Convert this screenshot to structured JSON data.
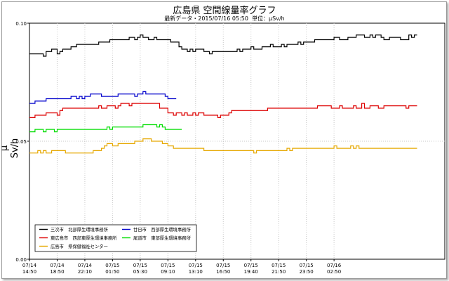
{
  "chart_data": {
    "type": "line",
    "title": "広島県 空間線量率グラフ",
    "subtitle_date_label": "最新データ・2015/07/16 05:50",
    "subtitle_unit_label": "単位：μSv/h",
    "ylabel": "μ Sv/h",
    "ylim": [
      0,
      0.1
    ],
    "yticks": [
      "0.00",
      "0.05",
      "0.10"
    ],
    "xlim": [
      0,
      150
    ],
    "grid": true,
    "legend_position": "bottom-left",
    "xtick_labels": [
      {
        "x": 0,
        "date": "07/14",
        "time": "14:50"
      },
      {
        "x": 10,
        "date": "07/14",
        "time": "18:50"
      },
      {
        "x": 20,
        "date": "07/14",
        "time": "22:10"
      },
      {
        "x": 30,
        "date": "07/15",
        "time": "01:50"
      },
      {
        "x": 40,
        "date": "07/15",
        "time": "05:30"
      },
      {
        "x": 50,
        "date": "07/15",
        "time": "09:10"
      },
      {
        "x": 60,
        "date": "07/15",
        "time": "13:10"
      },
      {
        "x": 70,
        "date": "07/15",
        "time": "16:50"
      },
      {
        "x": 80,
        "date": "07/15",
        "time": "19:40"
      },
      {
        "x": 90,
        "date": "07/15",
        "time": "21:50"
      },
      {
        "x": 100,
        "date": "07/15",
        "time": "23:50"
      },
      {
        "x": 110,
        "date": "07/16",
        "time": "02:50"
      }
    ],
    "series": [
      {
        "name": "三次市　北部厚生環境事務所",
        "color": "#000000",
        "values": [
          0.087,
          0.087,
          0.087,
          0.087,
          0.087,
          0.086,
          0.088,
          0.088,
          0.089,
          0.089,
          0.087,
          0.088,
          0.089,
          0.089,
          0.089,
          0.09,
          0.09,
          0.091,
          0.091,
          0.091,
          0.091,
          0.091,
          0.091,
          0.091,
          0.091,
          0.092,
          0.092,
          0.092,
          0.092,
          0.093,
          0.093,
          0.093,
          0.093,
          0.093,
          0.093,
          0.093,
          0.094,
          0.094,
          0.093,
          0.094,
          0.095,
          0.094,
          0.094,
          0.093,
          0.093,
          0.094,
          0.093,
          0.093,
          0.093,
          0.093,
          0.093,
          0.092,
          0.092,
          0.092,
          0.09,
          0.089,
          0.089,
          0.088,
          0.089,
          0.088,
          0.089,
          0.089,
          0.089,
          0.088,
          0.088,
          0.087,
          0.088,
          0.088,
          0.088,
          0.088,
          0.088,
          0.088,
          0.088,
          0.088,
          0.088,
          0.089,
          0.088,
          0.089,
          0.089,
          0.089,
          0.09,
          0.089,
          0.089,
          0.089,
          0.09,
          0.09,
          0.09,
          0.091,
          0.09,
          0.09,
          0.09,
          0.091,
          0.09,
          0.091,
          0.091,
          0.091,
          0.091,
          0.092,
          0.091,
          0.092,
          0.092,
          0.092,
          0.092,
          0.093,
          0.093,
          0.093,
          0.093,
          0.093,
          0.093,
          0.093,
          0.094,
          0.094,
          0.093,
          0.093,
          0.093,
          0.094,
          0.094,
          0.094,
          0.095,
          0.095,
          0.095,
          0.094,
          0.094,
          0.095,
          0.094,
          0.095,
          0.095,
          0.094,
          0.093,
          0.093,
          0.094,
          0.094,
          0.094,
          0.094,
          0.093,
          0.093,
          0.093,
          0.095,
          0.094,
          0.095
        ]
      },
      {
        "name": "廿日市　西部厚生環境事務所",
        "color": "#0000cc",
        "values": [
          0.066,
          0.066,
          0.067,
          0.067,
          0.067,
          0.067,
          0.068,
          0.068,
          0.068,
          0.068,
          0.068,
          0.068,
          0.068,
          0.068,
          0.068,
          0.069,
          0.069,
          0.068,
          0.069,
          0.068,
          0.069,
          0.069,
          0.07,
          0.07,
          0.07,
          0.07,
          0.069,
          0.069,
          0.069,
          0.069,
          0.069,
          0.069,
          0.07,
          0.07,
          0.07,
          0.07,
          0.07,
          0.07,
          0.069,
          0.07,
          0.07,
          0.071,
          0.07,
          0.07,
          0.07,
          0.07,
          0.07,
          0.07,
          0.07,
          0.069,
          0.068,
          0.068,
          0.068
        ]
      },
      {
        "name": "東広島市　西部東厚生環境事務所",
        "color": "#dd0000",
        "values": [
          0.06,
          0.06,
          0.061,
          0.061,
          0.061,
          0.061,
          0.062,
          0.062,
          0.062,
          0.062,
          0.061,
          0.063,
          0.064,
          0.064,
          0.064,
          0.064,
          0.064,
          0.064,
          0.064,
          0.064,
          0.064,
          0.064,
          0.064,
          0.064,
          0.064,
          0.065,
          0.064,
          0.064,
          0.065,
          0.065,
          0.065,
          0.064,
          0.065,
          0.066,
          0.066,
          0.066,
          0.065,
          0.066,
          0.066,
          0.066,
          0.066,
          0.066,
          0.066,
          0.066,
          0.066,
          0.066,
          0.066,
          0.064,
          0.064,
          0.064,
          0.062,
          0.062,
          0.061,
          0.062,
          0.062,
          0.061,
          0.062,
          0.061,
          0.061,
          0.062,
          0.061,
          0.062,
          0.062,
          0.061,
          0.061,
          0.061,
          0.061,
          0.061,
          0.06,
          0.061,
          0.061,
          0.061,
          0.062,
          0.063,
          0.063,
          0.063,
          0.063,
          0.063,
          0.063,
          0.063,
          0.063,
          0.063,
          0.063,
          0.063,
          0.063,
          0.063,
          0.064,
          0.064,
          0.064,
          0.064,
          0.064,
          0.064,
          0.064,
          0.064,
          0.064,
          0.064,
          0.064,
          0.064,
          0.064,
          0.064,
          0.064,
          0.064,
          0.064,
          0.064,
          0.065,
          0.065,
          0.065,
          0.065,
          0.065,
          0.064,
          0.064,
          0.064,
          0.065,
          0.064,
          0.064,
          0.064,
          0.064,
          0.065,
          0.064,
          0.064,
          0.066,
          0.064,
          0.064,
          0.065,
          0.065,
          0.065,
          0.064,
          0.064,
          0.065,
          0.065,
          0.065,
          0.065,
          0.065,
          0.065,
          0.065,
          0.065,
          0.064,
          0.065,
          0.065,
          0.065
        ]
      },
      {
        "name": "尾道市　東部厚生環境事務所",
        "color": "#00dd00",
        "values": [
          0.054,
          0.054,
          0.055,
          0.055,
          0.055,
          0.054,
          0.055,
          0.055,
          0.055,
          0.054,
          0.055,
          0.055,
          0.055,
          0.055,
          0.055,
          0.055,
          0.055,
          0.055,
          0.055,
          0.055,
          0.055,
          0.055,
          0.055,
          0.055,
          0.055,
          0.055,
          0.055,
          0.055,
          0.056,
          0.055,
          0.056,
          0.056,
          0.056,
          0.056,
          0.056,
          0.056,
          0.056,
          0.056,
          0.056,
          0.056,
          0.056,
          0.057,
          0.057,
          0.057,
          0.057,
          0.057,
          0.056,
          0.057,
          0.056,
          0.055,
          0.055,
          0.055,
          0.055,
          0.055,
          0.055
        ]
      },
      {
        "name": "広島市　県保健福祉センター",
        "color": "#e6a800",
        "values": [
          0.045,
          0.045,
          0.045,
          0.046,
          0.045,
          0.046,
          0.045,
          0.045,
          0.046,
          0.046,
          0.046,
          0.046,
          0.046,
          0.045,
          0.045,
          0.045,
          0.045,
          0.045,
          0.045,
          0.045,
          0.045,
          0.045,
          0.045,
          0.046,
          0.046,
          0.046,
          0.047,
          0.048,
          0.049,
          0.049,
          0.048,
          0.048,
          0.049,
          0.049,
          0.049,
          0.049,
          0.049,
          0.049,
          0.05,
          0.05,
          0.05,
          0.051,
          0.051,
          0.051,
          0.05,
          0.05,
          0.05,
          0.05,
          0.049,
          0.049,
          0.048,
          0.048,
          0.047,
          0.047,
          0.047,
          0.047,
          0.047,
          0.047,
          0.047,
          0.047,
          0.047,
          0.047,
          0.047,
          0.046,
          0.046,
          0.046,
          0.046,
          0.046,
          0.046,
          0.046,
          0.046,
          0.046,
          0.046,
          0.046,
          0.046,
          0.046,
          0.046,
          0.046,
          0.046,
          0.046,
          0.046,
          0.045,
          0.046,
          0.046,
          0.046,
          0.046,
          0.046,
          0.046,
          0.046,
          0.046,
          0.046,
          0.046,
          0.046,
          0.047,
          0.046,
          0.047,
          0.047,
          0.047,
          0.047,
          0.047,
          0.047,
          0.047,
          0.047,
          0.047,
          0.047,
          0.047,
          0.047,
          0.047,
          0.047,
          0.047,
          0.048,
          0.047,
          0.047,
          0.047,
          0.047,
          0.047,
          0.048,
          0.047,
          0.048,
          0.047,
          0.047,
          0.047,
          0.047,
          0.047,
          0.047,
          0.047,
          0.047,
          0.047,
          0.047,
          0.047,
          0.047,
          0.047,
          0.047,
          0.047,
          0.047,
          0.047,
          0.047,
          0.047,
          0.047,
          0.047
        ]
      }
    ]
  }
}
